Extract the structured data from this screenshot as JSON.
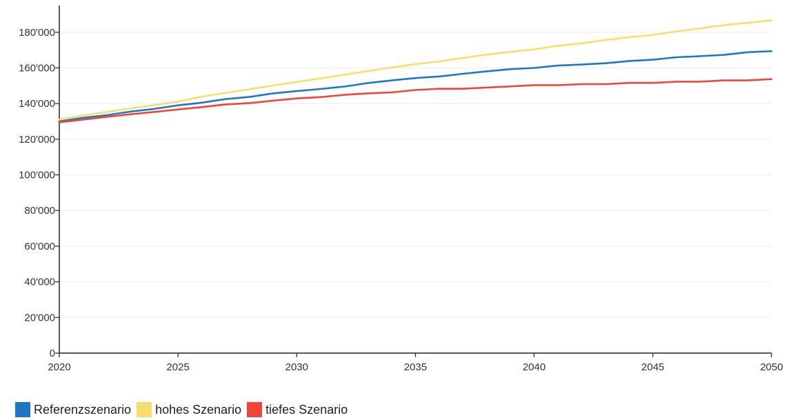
{
  "chart_data": {
    "type": "line",
    "title": "",
    "xlabel": "",
    "ylabel": "",
    "xlim": [
      2020,
      2050
    ],
    "ylim": [
      0,
      195000
    ],
    "x_ticks": [
      2020,
      2025,
      2030,
      2035,
      2040,
      2045,
      2050
    ],
    "x_tick_labels": [
      "2020",
      "2025",
      "2030",
      "2035",
      "2040",
      "2045",
      "2050"
    ],
    "y_ticks": [
      0,
      20000,
      40000,
      60000,
      80000,
      100000,
      120000,
      140000,
      160000,
      180000
    ],
    "y_tick_labels": [
      "0",
      "20'000",
      "40'000",
      "60'000",
      "80'000",
      "100'000",
      "120'000",
      "140'000",
      "160'000",
      "180'000"
    ],
    "grid": true,
    "legend_position": "bottom-left",
    "x": [
      2020,
      2021,
      2022,
      2023,
      2024,
      2025,
      2026,
      2027,
      2028,
      2029,
      2030,
      2031,
      2032,
      2033,
      2034,
      2035,
      2036,
      2037,
      2038,
      2039,
      2040,
      2041,
      2042,
      2043,
      2044,
      2045,
      2046,
      2047,
      2048,
      2049,
      2050
    ],
    "series": [
      {
        "name": "Referenzszenario",
        "color": "#1f77c4",
        "values": [
          130000,
          132000,
          133500,
          135500,
          137000,
          139000,
          140500,
          142500,
          143700,
          145700,
          147000,
          148200,
          149500,
          151500,
          153000,
          154300,
          155200,
          156700,
          158100,
          159300,
          160000,
          161300,
          161900,
          162600,
          163900,
          164600,
          166000,
          166600,
          167300,
          168800,
          169400
        ]
      },
      {
        "name": "hohes Szenario",
        "color": "#f7de6c",
        "values": [
          131000,
          133300,
          135300,
          137300,
          139100,
          141100,
          143900,
          146000,
          148000,
          150100,
          152100,
          154100,
          156100,
          158200,
          160200,
          162100,
          163600,
          165600,
          167500,
          169000,
          170400,
          172400,
          173800,
          175700,
          177200,
          178500,
          180500,
          182200,
          184000,
          185300,
          186700
        ]
      },
      {
        "name": "tiefes Szenario",
        "color": "#f04438",
        "values": [
          129500,
          131000,
          132500,
          134000,
          135300,
          136700,
          138000,
          139500,
          140200,
          141600,
          142900,
          143600,
          144900,
          145700,
          146300,
          147600,
          148300,
          148300,
          149000,
          149600,
          150300,
          150300,
          150900,
          150900,
          151600,
          151600,
          152300,
          152300,
          153000,
          153000,
          153700
        ]
      }
    ]
  }
}
